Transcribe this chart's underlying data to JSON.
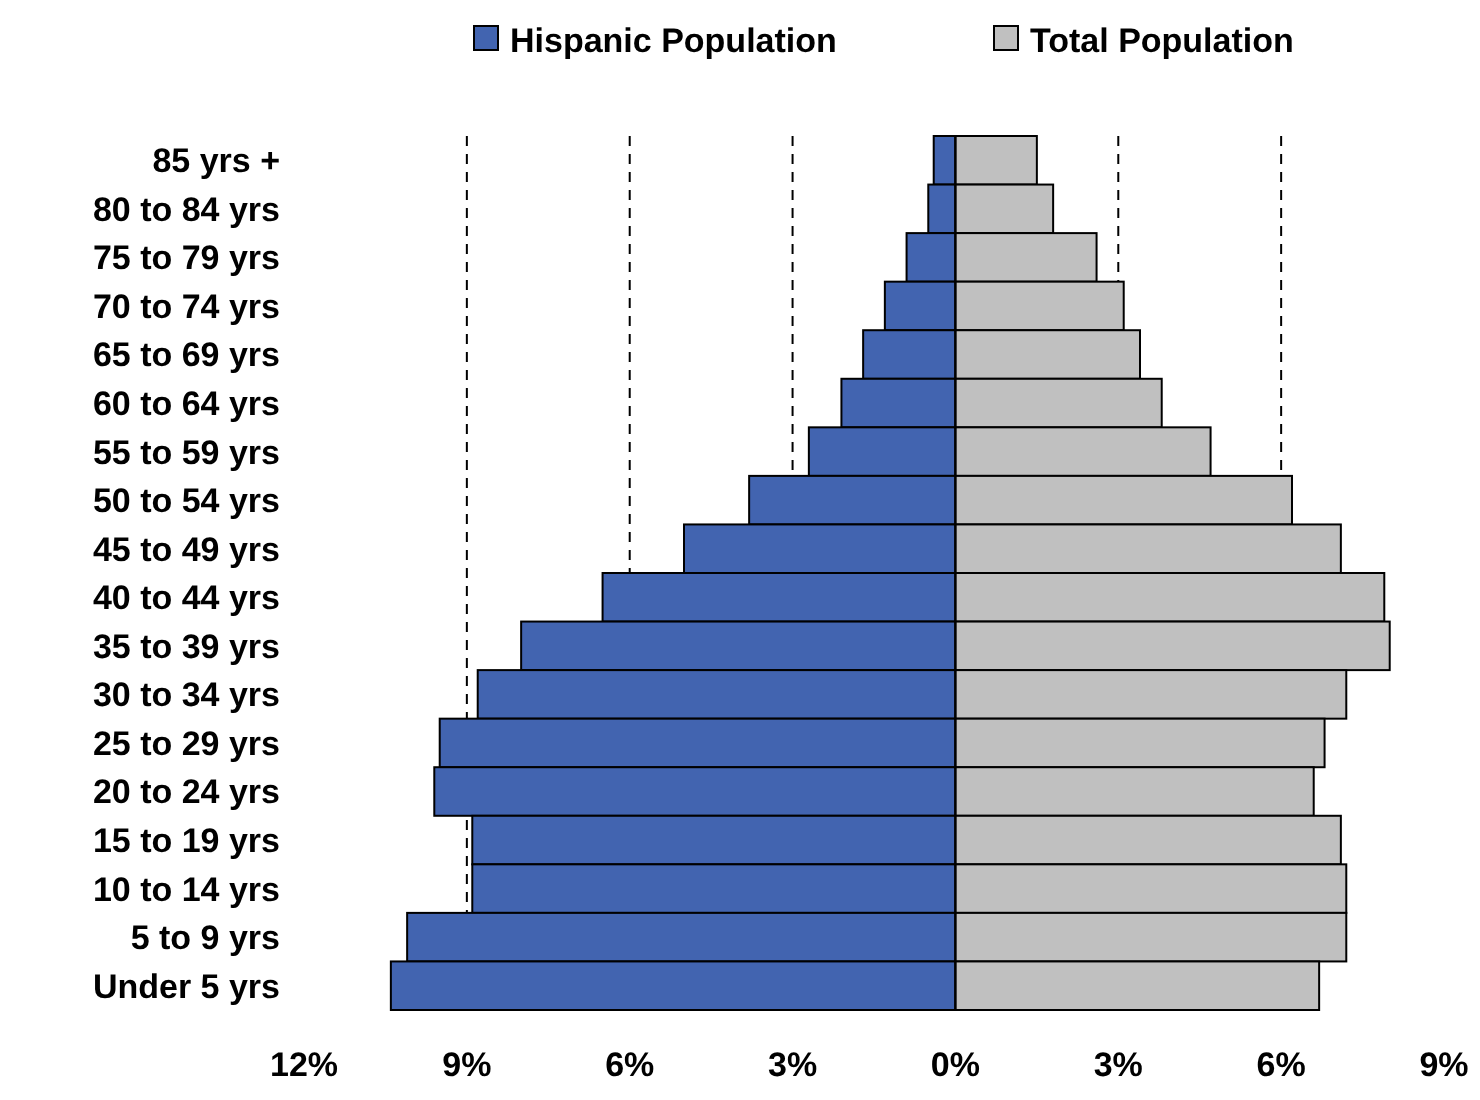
{
  "chart_data": {
    "type": "bar",
    "orientation": "horizontal",
    "categories": [
      "85 yrs +",
      "80 to 84 yrs",
      "75 to 79 yrs",
      "70 to 74 yrs",
      "65 to 69 yrs",
      "60 to 64 yrs",
      "55 to 59 yrs",
      "50 to 54 yrs",
      "45 to 49 yrs",
      "40 to 44 yrs",
      "35 to 39 yrs",
      "30 to 34 yrs",
      "25 to 29 yrs",
      "20 to 24 yrs",
      "15 to 19 yrs",
      "10 to 14 yrs",
      "5 to 9 yrs",
      "Under 5 yrs"
    ],
    "series": [
      {
        "name": "Hispanic Population",
        "color": "#4264b0",
        "values": [
          -0.4,
          -0.5,
          -0.9,
          -1.3,
          -1.7,
          -2.1,
          -2.7,
          -3.8,
          -5.0,
          -6.5,
          -8.0,
          -8.8,
          -9.5,
          -9.6,
          -8.9,
          -8.9,
          -10.1,
          -10.4
        ]
      },
      {
        "name": "Total Population",
        "color": "#c0c0c0",
        "values": [
          1.5,
          1.8,
          2.6,
          3.1,
          3.4,
          3.8,
          4.7,
          6.2,
          7.1,
          7.9,
          8.0,
          7.2,
          6.8,
          6.6,
          7.1,
          7.2,
          7.2,
          6.7
        ]
      }
    ],
    "xlim": [
      -12,
      9
    ],
    "xticks": [
      {
        "value": -12,
        "label": "12%"
      },
      {
        "value": -9,
        "label": "9%"
      },
      {
        "value": -6,
        "label": "6%"
      },
      {
        "value": -3,
        "label": "3%"
      },
      {
        "value": 0,
        "label": "0%"
      },
      {
        "value": 3,
        "label": "3%"
      },
      {
        "value": 6,
        "label": "6%"
      },
      {
        "value": 9,
        "label": "9%"
      }
    ],
    "grid": "x",
    "legend": "top",
    "stacked": true
  }
}
